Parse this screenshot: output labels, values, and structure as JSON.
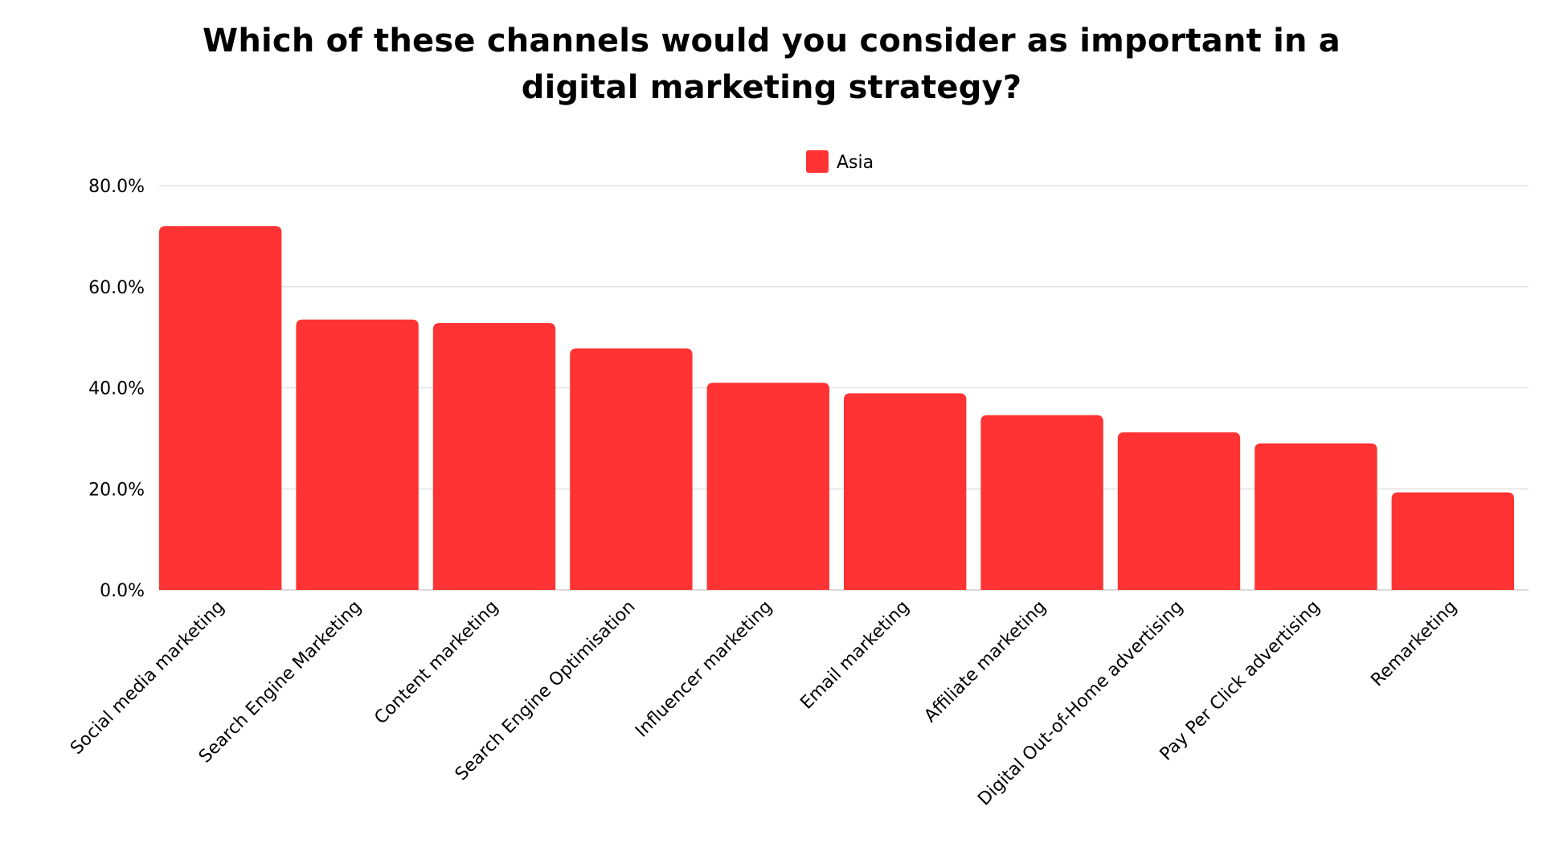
{
  "chart_data": {
    "type": "bar",
    "title": "Which of these channels would you consider as important in a digital marketing strategy?",
    "xlabel": "",
    "ylabel": "",
    "categories": [
      "Social media marketing",
      "Search Engine Marketing",
      "Content marketing",
      "Search Engine Optimisation",
      "Influencer marketing",
      "Email marketing",
      "Affiliate marketing",
      "Digital Out-of-Home advertising",
      "Pay Per Click advertising",
      "Remarketing"
    ],
    "series": [
      {
        "name": "Asia",
        "color": "#ff3333",
        "values": [
          72.0,
          53.5,
          52.8,
          47.8,
          41.0,
          38.9,
          34.6,
          31.2,
          29.0,
          19.3
        ]
      }
    ],
    "ylim": [
      0,
      80
    ],
    "yticks": [
      0,
      20,
      40,
      60,
      80
    ],
    "ytick_labels": [
      "0.0%",
      "20.0%",
      "40.0%",
      "60.0%",
      "80.0%"
    ],
    "grid": true,
    "legend_position": "top-center"
  }
}
